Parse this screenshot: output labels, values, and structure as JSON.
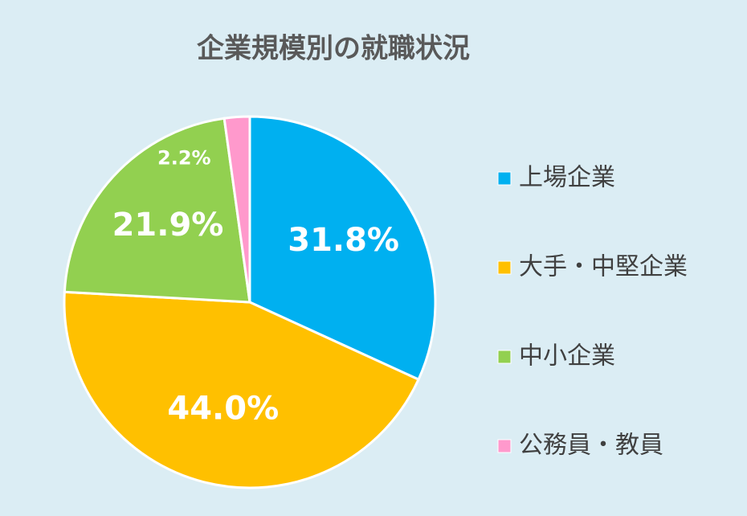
{
  "chart_data": {
    "type": "pie",
    "title": "企業規模別の就職状況",
    "categories": [
      "上場企業",
      "大手・中堅企業",
      "中小企業",
      "公務員・教員"
    ],
    "values": [
      31.8,
      44.0,
      21.9,
      2.2
    ],
    "value_labels": [
      "31.8%",
      "44.0%",
      "21.9%",
      "2.2%"
    ],
    "colors": [
      "#00b0f0",
      "#ffc000",
      "#92d050",
      "#ff99cc"
    ],
    "legend": "right"
  }
}
